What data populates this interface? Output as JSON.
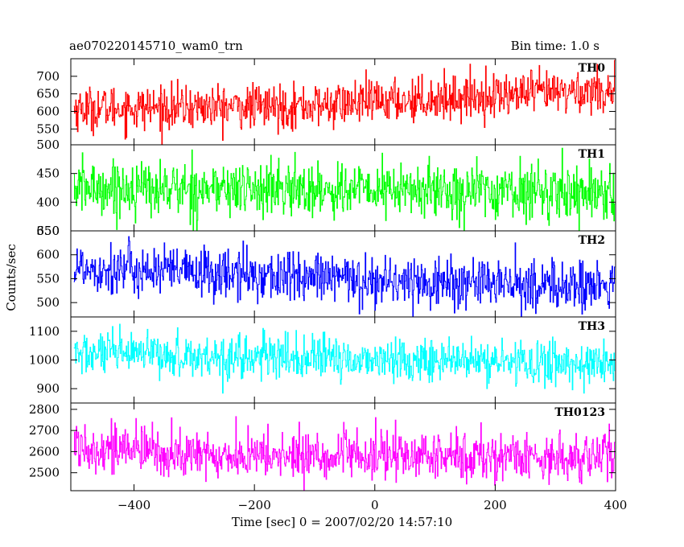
{
  "title": "ae070220145710_wam0_trn",
  "bin_time": "Bin time: 1.0 s",
  "xlabel": "Time [sec] 0 = 2007/02/20 14:57:10",
  "ylabel": "Counts/sec",
  "chart_data": {
    "type": "line",
    "x_range": [
      -505,
      400
    ],
    "x_ticks": [
      -400,
      -200,
      0,
      200,
      400
    ],
    "x_step": 1,
    "panels": [
      {
        "name": "TH0",
        "color": "#ff0000",
        "ylim": [
          505,
          750
        ],
        "y_ticks": [
          550,
          600,
          650,
          700
        ],
        "trend": [
          [
            -505,
            608
          ],
          [
            -100,
            615
          ],
          [
            0,
            628
          ],
          [
            400,
            662
          ]
        ],
        "noise_sigma": 31
      },
      {
        "name": "TH1",
        "color": "#00ff00",
        "ylim": [
          350,
          500
        ],
        "y_ticks": [
          350,
          400,
          450,
          500
        ],
        "trend": [
          [
            -505,
            425
          ],
          [
            400,
            418
          ]
        ],
        "noise_sigma": 24
      },
      {
        "name": "TH2",
        "color": "#0000ff",
        "ylim": [
          470,
          650
        ],
        "y_ticks": [
          500,
          550,
          600,
          650
        ],
        "trend": [
          [
            -505,
            575
          ],
          [
            -300,
            562
          ],
          [
            0,
            546
          ],
          [
            400,
            532
          ]
        ],
        "noise_sigma": 27
      },
      {
        "name": "TH3",
        "color": "#00ffff",
        "ylim": [
          850,
          1150
        ],
        "y_ticks": [
          900,
          1000,
          1100
        ],
        "trend": [
          [
            -505,
            1022
          ],
          [
            400,
            985
          ]
        ],
        "noise_sigma": 38
      },
      {
        "name": "TH0123",
        "color": "#ff00ff",
        "ylim": [
          2415,
          2830
        ],
        "y_ticks": [
          2500,
          2600,
          2700,
          2800
        ],
        "trend": [
          [
            -505,
            2635
          ],
          [
            -300,
            2580
          ],
          [
            400,
            2575
          ]
        ],
        "noise_sigma": 58
      }
    ]
  }
}
